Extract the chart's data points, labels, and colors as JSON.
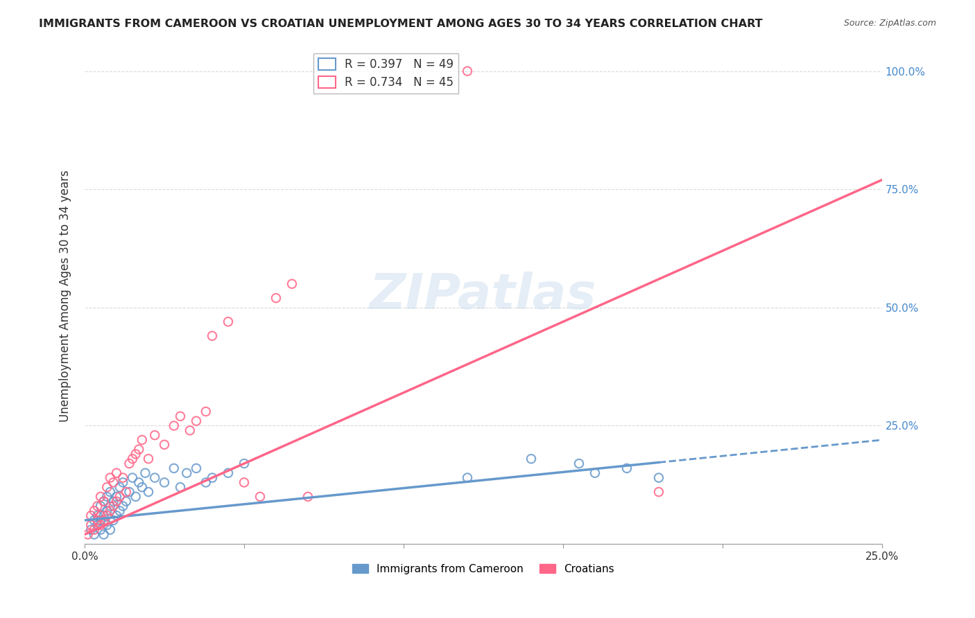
{
  "title": "IMMIGRANTS FROM CAMEROON VS CROATIAN UNEMPLOYMENT AMONG AGES 30 TO 34 YEARS CORRELATION CHART",
  "source": "Source: ZipAtlas.com",
  "xlabel_bottom": "",
  "ylabel": "Unemployment Among Ages 30 to 34 years",
  "x_min": 0.0,
  "x_max": 0.25,
  "y_min": 0.0,
  "y_max": 1.05,
  "x_ticks": [
    0.0,
    0.05,
    0.1,
    0.15,
    0.2,
    0.25
  ],
  "x_tick_labels": [
    "0.0%",
    "",
    "",
    "",
    "",
    "25.0%"
  ],
  "y_ticks": [
    0.0,
    0.25,
    0.5,
    0.75,
    1.0
  ],
  "y_tick_labels": [
    "",
    "25.0%",
    "50.0%",
    "75.0%",
    "100.0%"
  ],
  "legend_label1": "R = 0.397   N = 49",
  "legend_label2": "R = 0.734   N = 45",
  "color_blue": "#6699CC",
  "color_pink": "#FF6688",
  "watermark": "ZIPatlas",
  "watermark_color": "#CCDDEE",
  "blue_scatter_x": [
    0.002,
    0.003,
    0.003,
    0.004,
    0.004,
    0.005,
    0.005,
    0.005,
    0.006,
    0.006,
    0.006,
    0.007,
    0.007,
    0.007,
    0.008,
    0.008,
    0.008,
    0.009,
    0.009,
    0.01,
    0.01,
    0.011,
    0.011,
    0.012,
    0.012,
    0.013,
    0.014,
    0.015,
    0.016,
    0.017,
    0.018,
    0.019,
    0.02,
    0.022,
    0.025,
    0.028,
    0.03,
    0.032,
    0.035,
    0.038,
    0.04,
    0.045,
    0.05,
    0.12,
    0.14,
    0.155,
    0.16,
    0.17,
    0.18
  ],
  "blue_scatter_y": [
    0.03,
    0.02,
    0.05,
    0.04,
    0.06,
    0.03,
    0.05,
    0.08,
    0.02,
    0.06,
    0.09,
    0.04,
    0.07,
    0.1,
    0.03,
    0.08,
    0.11,
    0.05,
    0.09,
    0.06,
    0.1,
    0.07,
    0.12,
    0.08,
    0.13,
    0.09,
    0.11,
    0.14,
    0.1,
    0.13,
    0.12,
    0.15,
    0.11,
    0.14,
    0.13,
    0.16,
    0.12,
    0.15,
    0.16,
    0.13,
    0.14,
    0.15,
    0.17,
    0.14,
    0.18,
    0.17,
    0.15,
    0.16,
    0.14
  ],
  "pink_scatter_x": [
    0.001,
    0.002,
    0.002,
    0.003,
    0.003,
    0.004,
    0.004,
    0.005,
    0.005,
    0.005,
    0.006,
    0.006,
    0.007,
    0.007,
    0.008,
    0.008,
    0.009,
    0.009,
    0.01,
    0.01,
    0.011,
    0.012,
    0.013,
    0.014,
    0.015,
    0.016,
    0.017,
    0.018,
    0.02,
    0.022,
    0.025,
    0.028,
    0.03,
    0.033,
    0.035,
    0.038,
    0.04,
    0.045,
    0.05,
    0.055,
    0.06,
    0.065,
    0.07,
    0.12,
    0.18
  ],
  "pink_scatter_y": [
    0.02,
    0.04,
    0.06,
    0.03,
    0.07,
    0.05,
    0.08,
    0.04,
    0.06,
    0.1,
    0.05,
    0.09,
    0.06,
    0.12,
    0.07,
    0.14,
    0.08,
    0.13,
    0.09,
    0.15,
    0.1,
    0.14,
    0.11,
    0.17,
    0.18,
    0.19,
    0.2,
    0.22,
    0.18,
    0.23,
    0.21,
    0.25,
    0.27,
    0.24,
    0.26,
    0.28,
    0.44,
    0.47,
    0.13,
    0.1,
    0.52,
    0.55,
    0.1,
    1.0,
    0.11
  ],
  "blue_trend_x": [
    0.0,
    0.25
  ],
  "blue_trend_y": [
    0.05,
    0.22
  ],
  "pink_trend_x": [
    0.0,
    0.25
  ],
  "pink_trend_y": [
    0.02,
    0.77
  ],
  "grid_color": "#CCCCCC",
  "bg_color": "#FFFFFF"
}
